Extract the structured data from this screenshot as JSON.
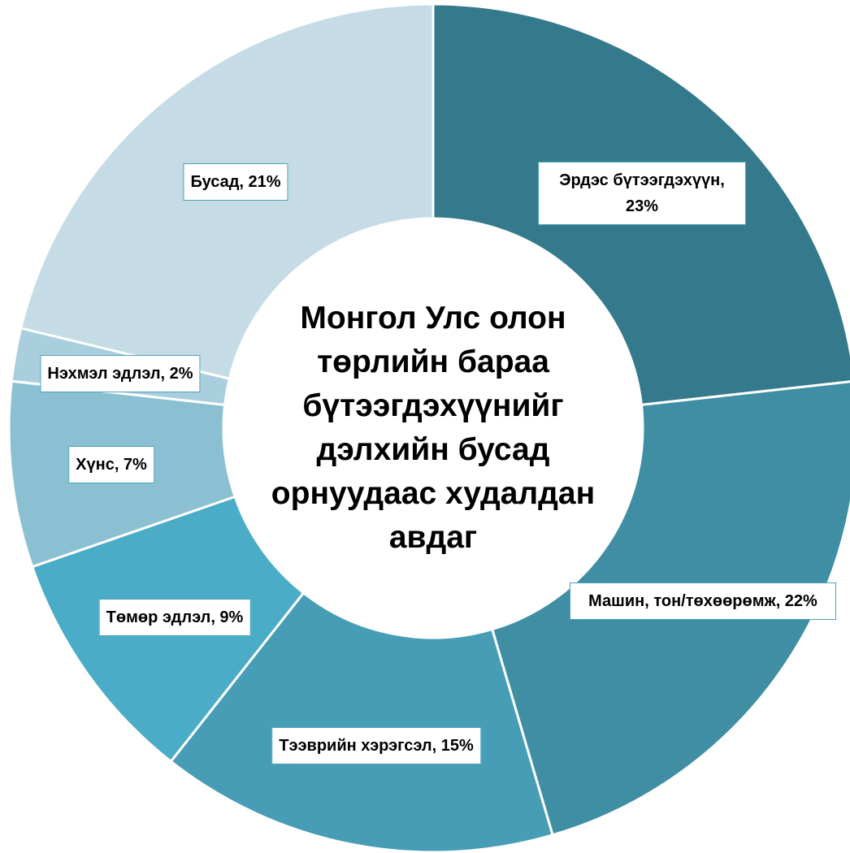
{
  "chart_data": {
    "type": "donut",
    "title": "Монгол Улс олон төрлийн бараа бүтээгдэхүүнийг дэлхийн бусад орнуудаас худалдан авдаг",
    "values": [
      23,
      22,
      15,
      9,
      7,
      2,
      21
    ],
    "value_labels": [
      "Эрдэс бүтээгдэхүүн, 23%",
      "Машин, тон/төхөөрөмж, 22%",
      "Тээврийн хэрэгсэл, 15%",
      "Төмөр эдлэл, 9%",
      "Хүнс, 7%",
      "Нэхмэл эдлэл, 2%",
      "Бусад, 21%"
    ],
    "colors": [
      "#357a8c",
      "#3f8ea3",
      "#469db5",
      "#4aacc6",
      "#8bc0d2",
      "#a9cfdf",
      "#c5dce6"
    ]
  }
}
